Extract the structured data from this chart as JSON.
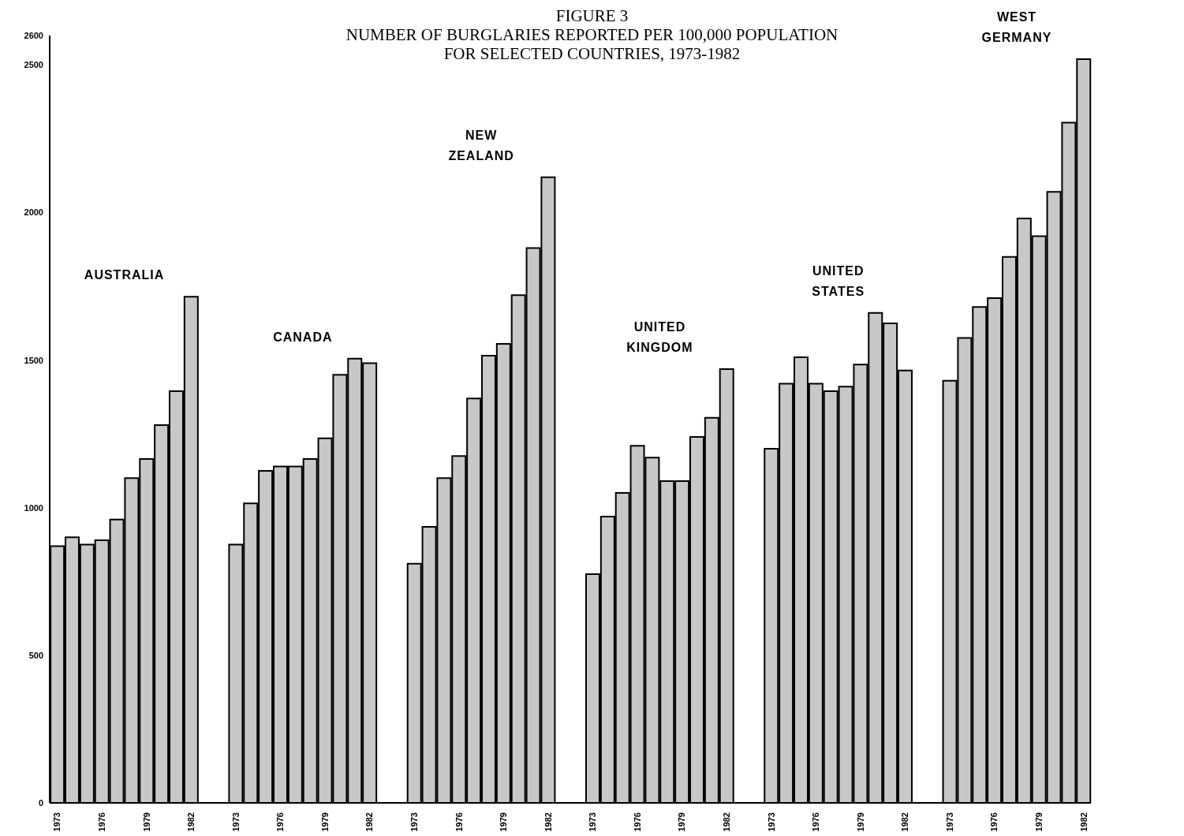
{
  "chart_data": {
    "type": "bar",
    "title": "FIGURE 3\nNUMBER OF BURGLARIES REPORTED PER 100,000 POPULATION\nFOR SELECTED COUNTRIES, 1973-1982",
    "categories": [
      "1973",
      null,
      null,
      "1976",
      null,
      null,
      "1979",
      null,
      null,
      "1982",
      null,
      null,
      "1973",
      null,
      null,
      "1976",
      null,
      null,
      "1979",
      null,
      null,
      "1982",
      null,
      null,
      "1973",
      null,
      null,
      "1976",
      null,
      null,
      "1979",
      null,
      null,
      "1982",
      null,
      null,
      "1973",
      null,
      null,
      "1976",
      null,
      null,
      "1979",
      null,
      null,
      "1982",
      null,
      null,
      "1973",
      null,
      null,
      "1976",
      null,
      null,
      "1979",
      null,
      null,
      "1982",
      null,
      null,
      "1973",
      null,
      null,
      "1976",
      null,
      null,
      "1979",
      null,
      null,
      "1982"
    ],
    "series": [
      {
        "name": "AUSTRALIA",
        "color": "#c8c8c8",
        "values": [
          870,
          900,
          875,
          890,
          960,
          1100,
          1165,
          1280,
          1395,
          1715,
          null,
          null,
          null,
          null,
          null,
          null,
          null,
          null,
          null,
          null,
          null,
          null,
          null,
          null,
          null,
          null,
          null,
          null,
          null,
          null,
          null,
          null,
          null,
          null,
          null,
          null,
          null,
          null,
          null,
          null,
          null,
          null,
          null,
          null,
          null,
          null,
          null,
          null,
          null,
          null,
          null,
          null,
          null,
          null,
          null,
          null,
          null,
          null,
          null,
          null,
          null,
          null,
          null,
          null,
          null,
          null,
          null,
          null,
          null,
          null
        ]
      },
      {
        "name": "CANADA",
        "color": "#c8c8c8",
        "values": [
          null,
          null,
          null,
          null,
          null,
          null,
          null,
          null,
          null,
          null,
          null,
          null,
          875,
          1015,
          1125,
          1140,
          1140,
          1165,
          1235,
          1450,
          1505,
          1490,
          null,
          null,
          null,
          null,
          null,
          null,
          null,
          null,
          null,
          null,
          null,
          null,
          null,
          null,
          null,
          null,
          null,
          null,
          null,
          null,
          null,
          null,
          null,
          null,
          null,
          null,
          null,
          null,
          null,
          null,
          null,
          null,
          null,
          null,
          null,
          null,
          null,
          null,
          null,
          null,
          null,
          null,
          null,
          null,
          null,
          null,
          null,
          null
        ]
      },
      {
        "name": "NEW ZEALAND",
        "color": "#c8c8c8",
        "values": [
          null,
          null,
          null,
          null,
          null,
          null,
          null,
          null,
          null,
          null,
          null,
          null,
          null,
          null,
          null,
          null,
          null,
          null,
          null,
          null,
          null,
          null,
          null,
          null,
          810,
          935,
          1100,
          1175,
          1370,
          1515,
          1555,
          1720,
          1880,
          2120,
          null,
          null,
          null,
          null,
          null,
          null,
          null,
          null,
          null,
          null,
          null,
          null,
          null,
          null,
          null,
          null,
          null,
          null,
          null,
          null,
          null,
          null,
          null,
          null,
          null,
          null,
          null,
          null,
          null,
          null,
          null,
          null,
          null,
          null,
          null,
          null
        ]
      },
      {
        "name": "UNITED KINGDOM",
        "color": "#c8c8c8",
        "values": [
          null,
          null,
          null,
          null,
          null,
          null,
          null,
          null,
          null,
          null,
          null,
          null,
          null,
          null,
          null,
          null,
          null,
          null,
          null,
          null,
          null,
          null,
          null,
          null,
          null,
          null,
          null,
          null,
          null,
          null,
          null,
          null,
          null,
          null,
          null,
          null,
          775,
          970,
          1050,
          1210,
          1170,
          1090,
          1090,
          1240,
          1305,
          1470,
          null,
          null,
          null,
          null,
          null,
          null,
          null,
          null,
          null,
          null,
          null,
          null,
          null,
          null,
          null,
          null,
          null,
          null,
          null,
          null,
          null,
          null,
          null,
          null
        ]
      },
      {
        "name": "UNITED STATES",
        "color": "#c8c8c8",
        "values": [
          null,
          null,
          null,
          null,
          null,
          null,
          null,
          null,
          null,
          null,
          null,
          null,
          null,
          null,
          null,
          null,
          null,
          null,
          null,
          null,
          null,
          null,
          null,
          null,
          null,
          null,
          null,
          null,
          null,
          null,
          null,
          null,
          null,
          null,
          null,
          null,
          null,
          null,
          null,
          null,
          null,
          null,
          null,
          null,
          null,
          null,
          null,
          null,
          1200,
          1420,
          1510,
          1420,
          1395,
          1410,
          1485,
          1660,
          1625,
          1465,
          null,
          null,
          null,
          null,
          null,
          null,
          null,
          null,
          null,
          null,
          null,
          null
        ]
      },
      {
        "name": "WEST GERMANY",
        "color": "#c8c8c8",
        "values": [
          null,
          null,
          null,
          null,
          null,
          null,
          null,
          null,
          null,
          null,
          null,
          null,
          null,
          null,
          null,
          null,
          null,
          null,
          null,
          null,
          null,
          null,
          null,
          null,
          null,
          null,
          null,
          null,
          null,
          null,
          null,
          null,
          null,
          null,
          null,
          null,
          null,
          null,
          null,
          null,
          null,
          null,
          null,
          null,
          null,
          null,
          null,
          null,
          null,
          null,
          null,
          null,
          null,
          null,
          null,
          null,
          null,
          null,
          null,
          null,
          1430,
          1575,
          1680,
          1710,
          1850,
          1980,
          1920,
          2070,
          2305,
          2520
        ]
      }
    ],
    "ylim": [
      0,
      2600
    ],
    "yticks": [
      0,
      500,
      1000,
      1500,
      2000,
      2500,
      2600
    ]
  }
}
